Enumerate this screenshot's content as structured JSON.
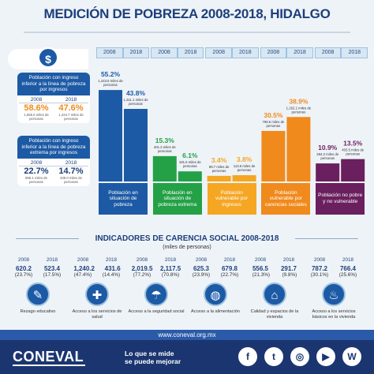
{
  "title": "MEDICIÓN DE POBREZA 2008-2018, HIDALGO",
  "years": [
    "2008",
    "2018"
  ],
  "side_cards": [
    {
      "header": "Población con ingreso inferior a la línea de pobreza por ingresos",
      "pct_2008": "58.6%",
      "pct_2018": "47.6%",
      "sub_2008": "1,555.0 miles de personas",
      "sub_2018": "1,424.7 miles de personas"
    },
    {
      "header": "Población con ingreso inferior a la línea de pobreza extrema por ingresos",
      "pct_2008": "22.7%",
      "pct_2018": "14.7%",
      "sub_2008": "596.1 miles de personas",
      "sub_2018": "439.0 miles de personas"
    }
  ],
  "chart_data": {
    "type": "bar",
    "categories": [
      "Población en situación de pobreza",
      "Población en situación de pobreza extrema",
      "Población vulnerable por ingresos",
      "Población vulnerable por carencias sociales",
      "Población no pobre y no vulnerable"
    ],
    "x_years": [
      "2008",
      "2018"
    ],
    "series": [
      {
        "values": [
          55.2,
          15.3,
          3.4,
          30.5,
          10.9
        ],
        "labels": [
          "55.2%",
          "15.3%",
          "3.4%",
          "30.5%",
          "10.9%"
        ],
        "persons": [
          "1,443.6 miles de personas",
          "401.3 miles de personas",
          "89.7 miles de personas",
          "798.6 miles de personas",
          "284.2 miles de personas"
        ]
      },
      {
        "values": [
          43.8,
          6.1,
          3.8,
          38.9,
          13.5
        ],
        "labels": [
          "43.8%",
          "6.1%",
          "3.8%",
          "38.9%",
          "13.5%"
        ],
        "persons": [
          "1,311.1 miles de personas",
          "181.5 miles de personas",
          "113.6 miles de personas",
          "1,162.1 miles de personas",
          "403.5 miles de personas"
        ]
      }
    ],
    "colors": [
      "#1d5aa5",
      "#24a147",
      "#f5a623",
      "#f08a1c",
      "#6a1f5e"
    ],
    "ylim": [
      0,
      60
    ]
  },
  "indicators": {
    "title": "INDICADORES DE CARENCIA SOCIAL 2008-2018",
    "subtitle": "(miles de personas)",
    "items": [
      {
        "v2008": "620.2",
        "p2008": "(23.7%)",
        "v2018": "523.4",
        "p2018": "(17.5%)",
        "label": "Rezago educativo",
        "icon": "education-icon",
        "glyph": "✎"
      },
      {
        "v2008": "1,240.2",
        "p2008": "(47.4%)",
        "v2018": "431.6",
        "p2018": "(14.4%)",
        "label": "Acceso a los servicios de salud",
        "icon": "health-icon",
        "glyph": "✚"
      },
      {
        "v2008": "2,019.5",
        "p2008": "(77.2%)",
        "v2018": "2,117.5",
        "p2018": "(70.8%)",
        "label": "Acceso a la seguridad social",
        "icon": "social-security-icon",
        "glyph": "☂"
      },
      {
        "v2008": "625.3",
        "p2008": "(23.9%)",
        "v2018": "679.8",
        "p2018": "(22.7%)",
        "label": "Acceso a la alimentación",
        "icon": "food-icon",
        "glyph": "◍"
      },
      {
        "v2008": "556.5",
        "p2008": "(21.3%)",
        "v2018": "291.7",
        "p2018": "(9.8%)",
        "label": "Calidad y espacios de la vivienda",
        "icon": "housing-icon",
        "glyph": "⌂"
      },
      {
        "v2008": "787.2",
        "p2008": "(30.1%)",
        "v2018": "766.4",
        "p2018": "(25.6%)",
        "label": "Acceso a los servicios básicos en la vivienda",
        "icon": "water-tap-icon",
        "glyph": "♨"
      }
    ]
  },
  "url": "www.coneval.org.mx",
  "logo": "CONEVAL",
  "slogan_line1": "Lo que se mide",
  "slogan_line2": "se puede mejorar",
  "social": [
    {
      "name": "facebook-icon",
      "glyph": "f"
    },
    {
      "name": "twitter-icon",
      "glyph": "t"
    },
    {
      "name": "instagram-icon",
      "glyph": "◎"
    },
    {
      "name": "youtube-icon",
      "glyph": "▶"
    },
    {
      "name": "wikipedia-icon",
      "glyph": "W"
    }
  ]
}
